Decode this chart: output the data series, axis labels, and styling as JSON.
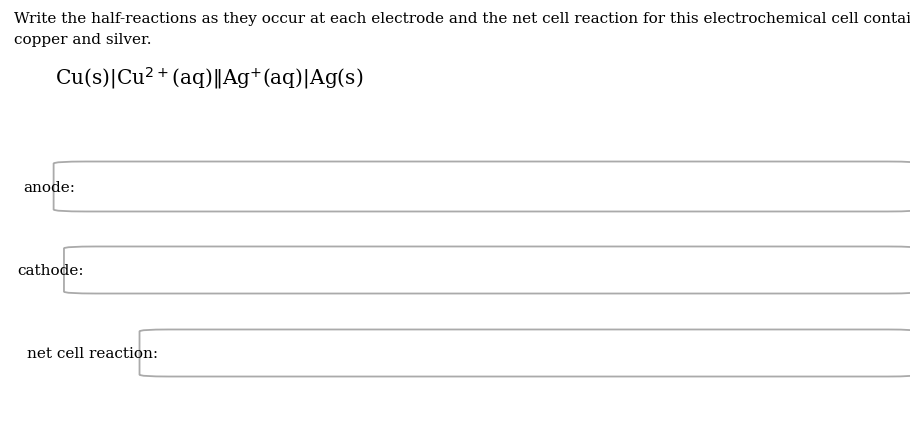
{
  "title_line1": "Write the half-reactions as they occur at each electrode and the net cell reaction for this electrochemical cell containing",
  "title_line2": "copper and silver.",
  "cell_notation_mathtext": "Cu(s)$|$Cu$^{2+}$(aq)$\\|$Ag$^{+}$(aq)$|$Ag(s)",
  "label_anode": "anode:",
  "label_cathode": "cathode:",
  "label_net": "net cell reaction:",
  "bg_color": "#ffffff",
  "text_color": "#000000",
  "box_edge_color": "#aaaaaa",
  "title_fontsize": 11.0,
  "label_fontsize": 11.0,
  "cell_fontsize": 14.5,
  "fig_width": 9.1,
  "fig_height": 4.27,
  "dpi": 100
}
